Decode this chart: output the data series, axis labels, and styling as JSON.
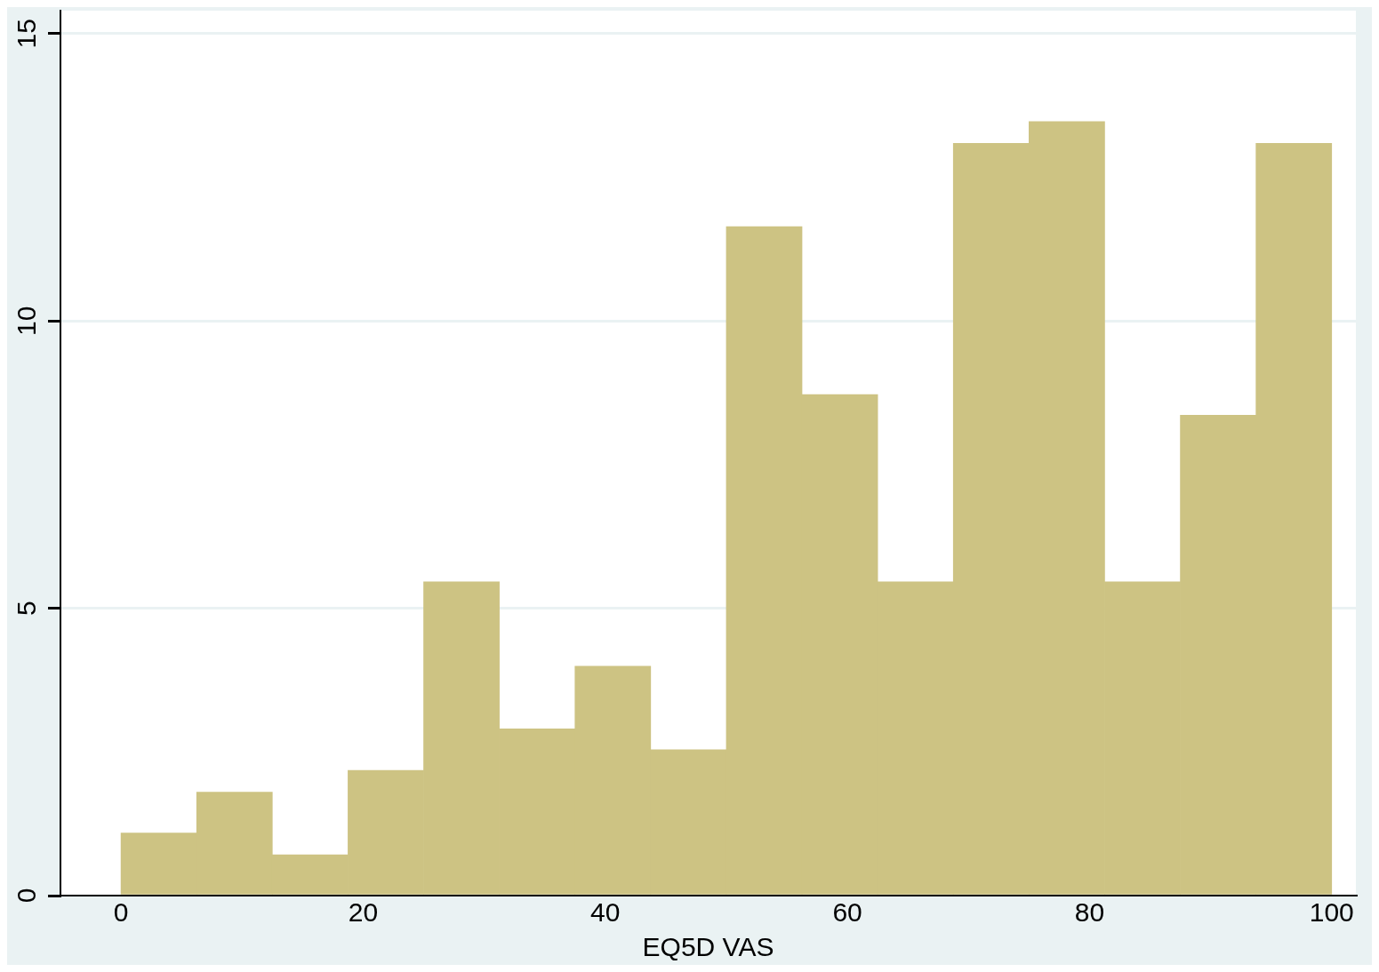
{
  "chart_data": {
    "type": "histogram",
    "xlabel": "EQ5D VAS",
    "bins": [
      0,
      6.25,
      12.5,
      18.75,
      25,
      31.25,
      37.5,
      43.75,
      50,
      56.25,
      62.5,
      68.75,
      75,
      81.25,
      87.5,
      93.75,
      100
    ],
    "values": [
      1.09,
      1.8,
      0.71,
      2.18,
      5.46,
      2.9,
      3.99,
      2.54,
      11.64,
      8.72,
      5.46,
      13.09,
      13.47,
      5.46,
      8.36,
      13.09
    ],
    "color": "#cdc383",
    "xlim": [
      -5,
      102
    ],
    "xticks": [
      0,
      20,
      40,
      60,
      80,
      100
    ],
    "ylim": [
      0,
      15.4
    ],
    "yticks": [
      0,
      5,
      10,
      15
    ],
    "grid": "y",
    "legend": false
  }
}
